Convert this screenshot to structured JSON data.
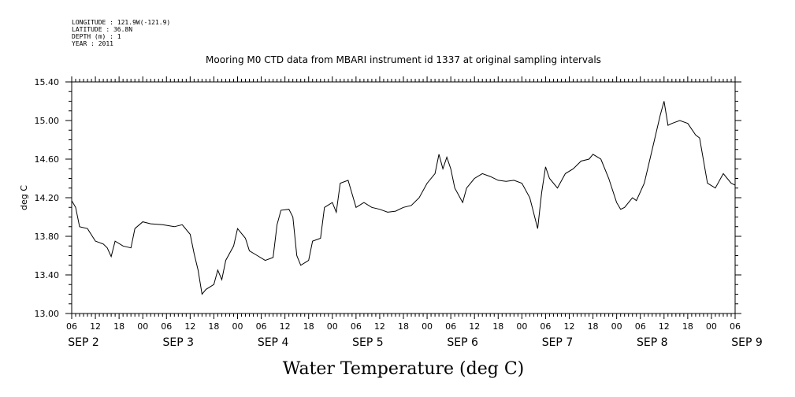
{
  "header": {
    "longitude": "LONGITUDE : 121.9W(-121.9)",
    "latitude": "LATITUDE : 36.8N",
    "depth": "DEPTH (m) : 1",
    "year": "YEAR : 2011"
  },
  "chart_data": {
    "type": "line",
    "title": "Mooring M0 CTD data from MBARI instrument id 1337 at original sampling intervals",
    "xlabel": "Water Temperature (deg C)",
    "ylabel": "deg C",
    "ylim": [
      13.0,
      15.4
    ],
    "y_ticks": [
      "13.00",
      "13.40",
      "13.80",
      "14.20",
      "14.60",
      "15.00",
      "15.40"
    ],
    "x_start": "SEP 2 06:00",
    "x_end": "SEP 9 06:00",
    "x_hour_labels": [
      "06",
      "12",
      "18",
      "00",
      "06",
      "12",
      "18",
      "00",
      "06",
      "12",
      "18",
      "00",
      "06",
      "12",
      "18",
      "00",
      "06",
      "12",
      "18",
      "00",
      "06",
      "12",
      "18",
      "00",
      "06",
      "12",
      "18",
      "00",
      "06"
    ],
    "x_day_labels": [
      "SEP  2",
      "SEP  3",
      "SEP  4",
      "SEP  5",
      "SEP  6",
      "SEP  7",
      "SEP  8",
      "SEP  9"
    ],
    "series": [
      {
        "color": "#000000",
        "points": [
          [
            "SEP 2 06:00",
            14.17
          ],
          [
            "SEP 2 07:00",
            14.1
          ],
          [
            "SEP 2 08:00",
            13.9
          ],
          [
            "SEP 2 10:00",
            13.88
          ],
          [
            "SEP 2 12:00",
            13.75
          ],
          [
            "SEP 2 14:00",
            13.72
          ],
          [
            "SEP 2 15:00",
            13.68
          ],
          [
            "SEP 2 16:00",
            13.59
          ],
          [
            "SEP 2 17:00",
            13.75
          ],
          [
            "SEP 2 19:00",
            13.7
          ],
          [
            "SEP 2 21:00",
            13.68
          ],
          [
            "SEP 2 22:00",
            13.88
          ],
          [
            "SEP 3 00:00",
            13.95
          ],
          [
            "SEP 3 02:00",
            13.93
          ],
          [
            "SEP 3 05:00",
            13.92
          ],
          [
            "SEP 3 08:00",
            13.9
          ],
          [
            "SEP 3 10:00",
            13.92
          ],
          [
            "SEP 3 12:00",
            13.82
          ],
          [
            "SEP 3 13:00",
            13.62
          ],
          [
            "SEP 3 14:00",
            13.45
          ],
          [
            "SEP 3 15:00",
            13.2
          ],
          [
            "SEP 3 16:00",
            13.25
          ],
          [
            "SEP 3 18:00",
            13.3
          ],
          [
            "SEP 3 19:00",
            13.45
          ],
          [
            "SEP 3 20:00",
            13.35
          ],
          [
            "SEP 3 21:00",
            13.55
          ],
          [
            "SEP 3 23:00",
            13.7
          ],
          [
            "SEP 4 00:00",
            13.88
          ],
          [
            "SEP 4 02:00",
            13.78
          ],
          [
            "SEP 4 03:00",
            13.65
          ],
          [
            "SEP 4 05:00",
            13.6
          ],
          [
            "SEP 4 07:00",
            13.55
          ],
          [
            "SEP 4 09:00",
            13.58
          ],
          [
            "SEP 4 10:00",
            13.92
          ],
          [
            "SEP 4 11:00",
            14.07
          ],
          [
            "SEP 4 13:00",
            14.08
          ],
          [
            "SEP 4 14:00",
            14.0
          ],
          [
            "SEP 4 15:00",
            13.6
          ],
          [
            "SEP 4 16:00",
            13.5
          ],
          [
            "SEP 4 18:00",
            13.55
          ],
          [
            "SEP 4 19:00",
            13.75
          ],
          [
            "SEP 4 21:00",
            13.78
          ],
          [
            "SEP 4 22:00",
            14.1
          ],
          [
            "SEP 5 00:00",
            14.15
          ],
          [
            "SEP 5 01:00",
            14.05
          ],
          [
            "SEP 5 02:00",
            14.35
          ],
          [
            "SEP 5 04:00",
            14.38
          ],
          [
            "SEP 5 06:00",
            14.1
          ],
          [
            "SEP 5 08:00",
            14.15
          ],
          [
            "SEP 5 10:00",
            14.1
          ],
          [
            "SEP 5 12:00",
            14.08
          ],
          [
            "SEP 5 14:00",
            14.05
          ],
          [
            "SEP 5 16:00",
            14.06
          ],
          [
            "SEP 5 18:00",
            14.1
          ],
          [
            "SEP 5 20:00",
            14.12
          ],
          [
            "SEP 5 22:00",
            14.2
          ],
          [
            "SEP 6 00:00",
            14.35
          ],
          [
            "SEP 6 02:00",
            14.45
          ],
          [
            "SEP 6 03:00",
            14.65
          ],
          [
            "SEP 6 04:00",
            14.5
          ],
          [
            "SEP 6 05:00",
            14.62
          ],
          [
            "SEP 6 06:00",
            14.5
          ],
          [
            "SEP 6 07:00",
            14.3
          ],
          [
            "SEP 6 09:00",
            14.15
          ],
          [
            "SEP 6 10:00",
            14.3
          ],
          [
            "SEP 6 12:00",
            14.4
          ],
          [
            "SEP 6 14:00",
            14.45
          ],
          [
            "SEP 6 16:00",
            14.42
          ],
          [
            "SEP 6 18:00",
            14.38
          ],
          [
            "SEP 6 20:00",
            14.37
          ],
          [
            "SEP 6 22:00",
            14.38
          ],
          [
            "SEP 7 00:00",
            14.35
          ],
          [
            "SEP 7 02:00",
            14.2
          ],
          [
            "SEP 7 04:00",
            13.88
          ],
          [
            "SEP 7 05:00",
            14.25
          ],
          [
            "SEP 7 06:00",
            14.52
          ],
          [
            "SEP 7 07:00",
            14.4
          ],
          [
            "SEP 7 09:00",
            14.3
          ],
          [
            "SEP 7 11:00",
            14.45
          ],
          [
            "SEP 7 13:00",
            14.5
          ],
          [
            "SEP 7 15:00",
            14.58
          ],
          [
            "SEP 7 17:00",
            14.6
          ],
          [
            "SEP 7 18:00",
            14.65
          ],
          [
            "SEP 7 20:00",
            14.6
          ],
          [
            "SEP 7 22:00",
            14.4
          ],
          [
            "SEP 8 00:00",
            14.15
          ],
          [
            "SEP 8 01:00",
            14.08
          ],
          [
            "SEP 8 02:00",
            14.1
          ],
          [
            "SEP 8 04:00",
            14.2
          ],
          [
            "SEP 8 05:00",
            14.17
          ],
          [
            "SEP 8 07:00",
            14.35
          ],
          [
            "SEP 8 09:00",
            14.7
          ],
          [
            "SEP 8 11:00",
            15.05
          ],
          [
            "SEP 8 12:00",
            15.2
          ],
          [
            "SEP 8 13:00",
            14.95
          ],
          [
            "SEP 8 14:00",
            14.97
          ],
          [
            "SEP 8 16:00",
            15.0
          ],
          [
            "SEP 8 18:00",
            14.97
          ],
          [
            "SEP 8 20:00",
            14.85
          ],
          [
            "SEP 8 21:00",
            14.82
          ],
          [
            "SEP 8 23:00",
            14.35
          ],
          [
            "SEP 9 01:00",
            14.3
          ],
          [
            "SEP 9 03:00",
            14.45
          ],
          [
            "SEP 9 05:00",
            14.35
          ],
          [
            "SEP 9 06:00",
            14.33
          ]
        ]
      }
    ]
  },
  "x_hour_labels_rendered_note_free": true
}
